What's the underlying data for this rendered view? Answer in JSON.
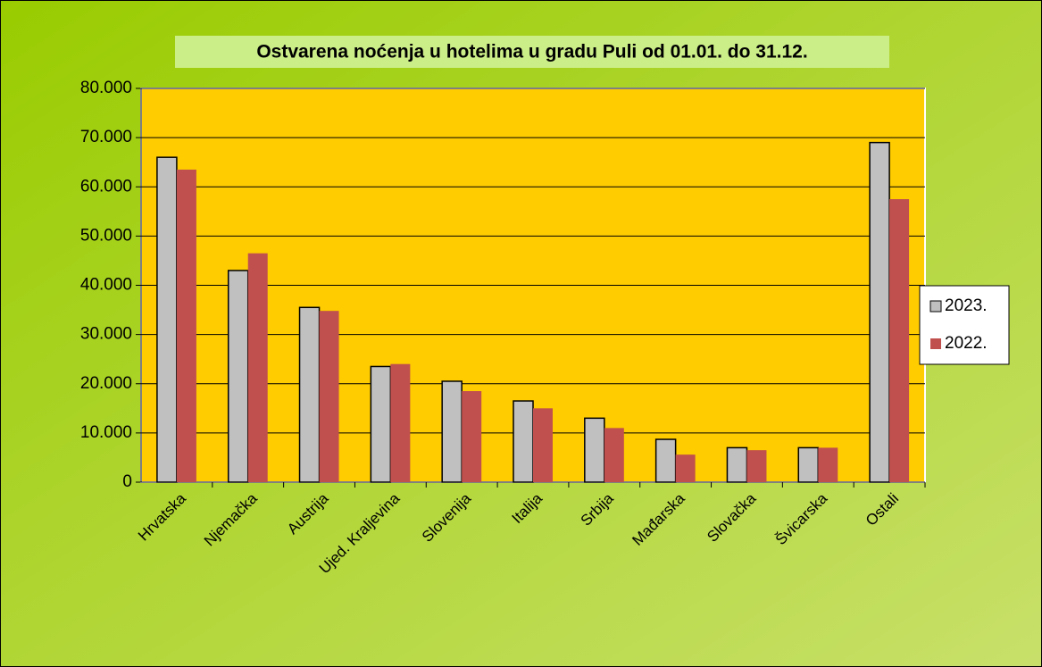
{
  "chart_data": {
    "type": "bar",
    "title": "Ostvarena noćenja u hotelima u gradu Puli od 01.01. do 31.12.",
    "categories": [
      "Hrvatska",
      "Njemačka",
      "Austrija",
      "Ujed. Kraljevina",
      "Slovenija",
      "Italija",
      "Srbija",
      "Mađarska",
      "Slovačka",
      "Švicarska",
      "Ostali"
    ],
    "series": [
      {
        "name": "2023.",
        "color": "#c0c0c0",
        "values": [
          66000,
          43000,
          35500,
          23500,
          20500,
          16500,
          13000,
          8700,
          7000,
          7000,
          69000
        ]
      },
      {
        "name": "2022.",
        "color": "#c0504d",
        "values": [
          63500,
          46500,
          34800,
          24000,
          18500,
          15000,
          11000,
          5600,
          6500,
          7000,
          57500
        ]
      }
    ],
    "ylim": [
      0,
      80000
    ],
    "yticks": [
      0,
      {
        "value": 10000,
        "label": "10.000"
      },
      {
        "value": 20000,
        "label": "20.000"
      },
      {
        "value": 30000,
        "label": "30.000"
      },
      {
        "value": 40000,
        "label": "40.000"
      },
      {
        "value": 50000,
        "label": "50.000"
      },
      {
        "value": 60000,
        "label": "60.000"
      },
      {
        "value": 70000,
        "label": "70.000"
      },
      {
        "value": 80000,
        "label": "80.000"
      }
    ],
    "grid": true,
    "legend": "right"
  }
}
